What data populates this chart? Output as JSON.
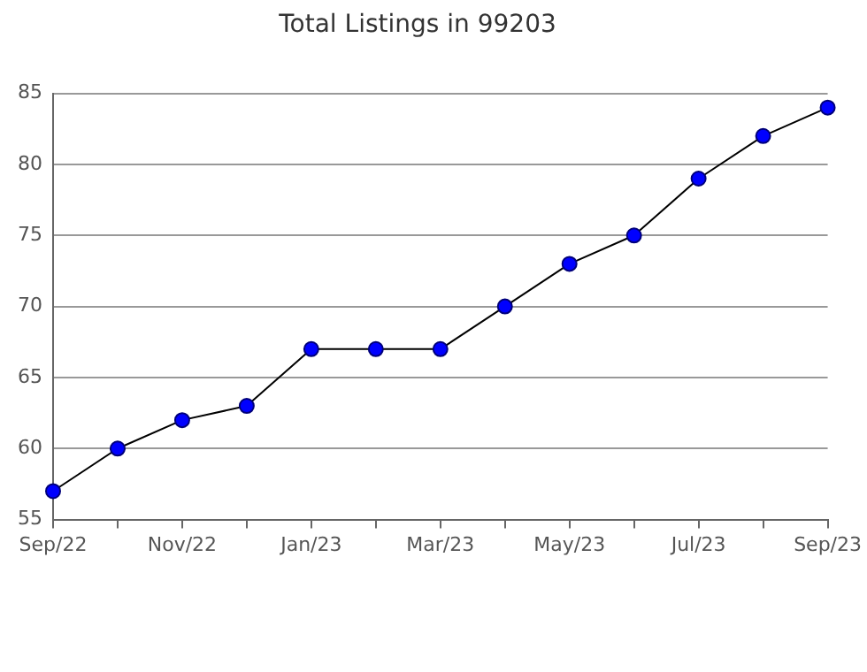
{
  "chart_data": {
    "type": "line",
    "title": "Total Listings in 99203",
    "categories": [
      "Sep/22",
      null,
      "Nov/22",
      null,
      "Jan/23",
      null,
      "Mar/23",
      null,
      "May/23",
      null,
      "Jul/23",
      null,
      "Sep/23"
    ],
    "series": [
      {
        "color": "#0000ff",
        "values": [
          57,
          60,
          62,
          63,
          67,
          67,
          67,
          70,
          73,
          75,
          79,
          82,
          84
        ]
      }
    ],
    "ylim": [
      55,
      85
    ],
    "yticks": [
      55,
      60,
      65,
      70,
      75,
      80,
      85
    ],
    "grid": "y",
    "legend": false,
    "marker": "circle",
    "line_style": "solid"
  }
}
